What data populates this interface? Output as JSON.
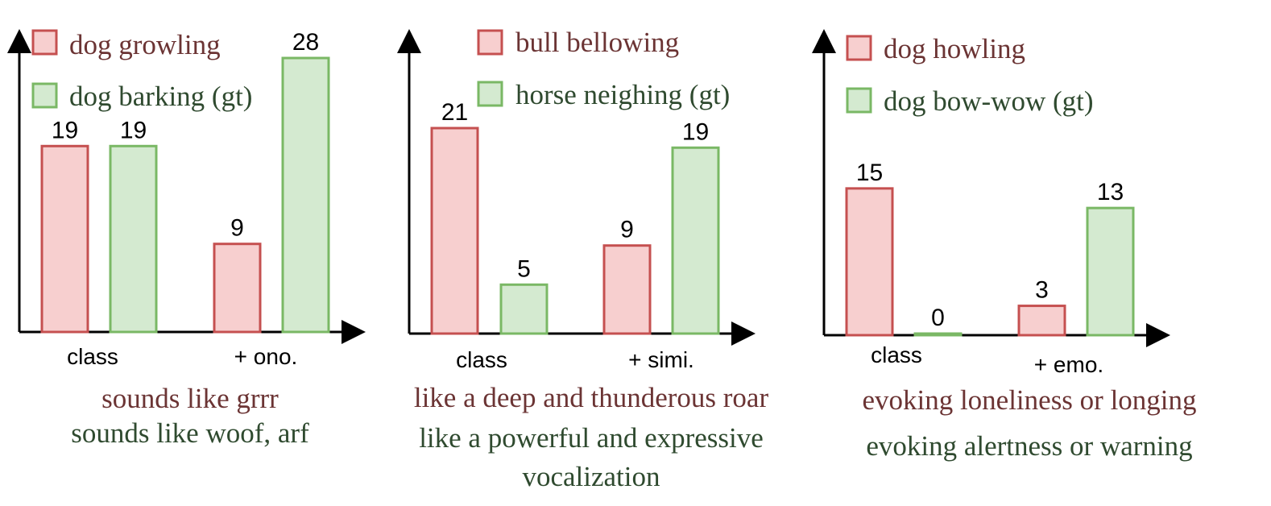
{
  "colors": {
    "red_fill": "#f7cfcf",
    "red_stroke": "#c55050",
    "green_fill": "#d4ead0",
    "green_stroke": "#7ab865",
    "red_text": "#6b3434",
    "green_text": "#2f4a2f",
    "axis": "#000000"
  },
  "chart_data": [
    {
      "type": "bar",
      "categories": [
        "class",
        "+ ono."
      ],
      "series": [
        {
          "name": "dog growling",
          "values": [
            19,
            9
          ]
        },
        {
          "name": "dog barking (gt)",
          "values": [
            19,
            28
          ]
        }
      ],
      "captions": [
        "sounds like grrr",
        "sounds like woof, arf"
      ]
    },
    {
      "type": "bar",
      "categories": [
        "class",
        "+ simi."
      ],
      "series": [
        {
          "name": "bull bellowing",
          "values": [
            21,
            9
          ]
        },
        {
          "name": "horse neighing (gt)",
          "values": [
            5,
            19
          ]
        }
      ],
      "captions": [
        "like a deep and thunderous roar",
        "like a powerful and expressive",
        "vocalization"
      ]
    },
    {
      "type": "bar",
      "categories": [
        "class",
        "+ emo."
      ],
      "series": [
        {
          "name": "dog howling",
          "values": [
            15,
            3
          ]
        },
        {
          "name": "dog bow-wow (gt)",
          "values": [
            0,
            13
          ]
        }
      ],
      "captions": [
        "evoking loneliness or longing",
        "evoking alertness or warning"
      ]
    }
  ]
}
